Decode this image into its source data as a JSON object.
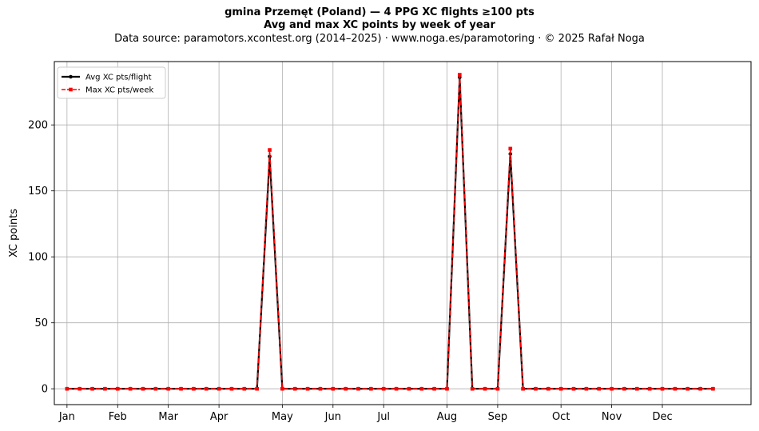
{
  "chart_data": {
    "type": "line",
    "title": "gmina Przemęt (Poland)  —  4 PPG XC flights ≥100 pts",
    "subtitle": "Avg and max XC points by week of year",
    "source": "Data source: paramotors.xcontest.org (2014–2025)  ·  www.noga.es/paramotoring  ·  © 2025 Rafał Noga",
    "xlabel": "",
    "ylabel": "XC points",
    "xlim": [
      -1,
      54
    ],
    "ylim": [
      -12,
      248
    ],
    "y_ticks": [
      0,
      50,
      100,
      150,
      200
    ],
    "x_ticks": [
      {
        "label": "Jan",
        "week": 0
      },
      {
        "label": "Feb",
        "week": 4
      },
      {
        "label": "Mar",
        "week": 8
      },
      {
        "label": "Apr",
        "week": 12
      },
      {
        "label": "May",
        "week": 17
      },
      {
        "label": "Jun",
        "week": 21
      },
      {
        "label": "Jul",
        "week": 25
      },
      {
        "label": "Aug",
        "week": 30
      },
      {
        "label": "Sep",
        "week": 34
      },
      {
        "label": "Oct",
        "week": 39
      },
      {
        "label": "Nov",
        "week": 43
      },
      {
        "label": "Dec",
        "week": 47
      }
    ],
    "grid": true,
    "legend_position": "top-left",
    "weeks": [
      0,
      1,
      2,
      3,
      4,
      5,
      6,
      7,
      8,
      9,
      10,
      11,
      12,
      13,
      14,
      15,
      16,
      17,
      18,
      19,
      20,
      21,
      22,
      23,
      24,
      25,
      26,
      27,
      28,
      29,
      30,
      31,
      32,
      33,
      34,
      35,
      36,
      37,
      38,
      39,
      40,
      41,
      42,
      43,
      44,
      45,
      46,
      47,
      48,
      49,
      50,
      51
    ],
    "series": [
      {
        "name": "Avg XC pts/flight",
        "color": "#000000",
        "style": "solid",
        "marker": "circle",
        "values": [
          0,
          0,
          0,
          0,
          0,
          0,
          0,
          0,
          0,
          0,
          0,
          0,
          0,
          0,
          0,
          0,
          176,
          0,
          0,
          0,
          0,
          0,
          0,
          0,
          0,
          0,
          0,
          0,
          0,
          0,
          0,
          236,
          0,
          0,
          0,
          178,
          0,
          0,
          0,
          0,
          0,
          0,
          0,
          0,
          0,
          0,
          0,
          0,
          0,
          0,
          0,
          0
        ]
      },
      {
        "name": "Max XC pts/week",
        "color": "#ff0000",
        "style": "dashed",
        "marker": "square",
        "values": [
          0,
          0,
          0,
          0,
          0,
          0,
          0,
          0,
          0,
          0,
          0,
          0,
          0,
          0,
          0,
          0,
          181,
          0,
          0,
          0,
          0,
          0,
          0,
          0,
          0,
          0,
          0,
          0,
          0,
          0,
          0,
          238,
          0,
          0,
          0,
          182,
          0,
          0,
          0,
          0,
          0,
          0,
          0,
          0,
          0,
          0,
          0,
          0,
          0,
          0,
          0,
          0
        ]
      }
    ]
  }
}
